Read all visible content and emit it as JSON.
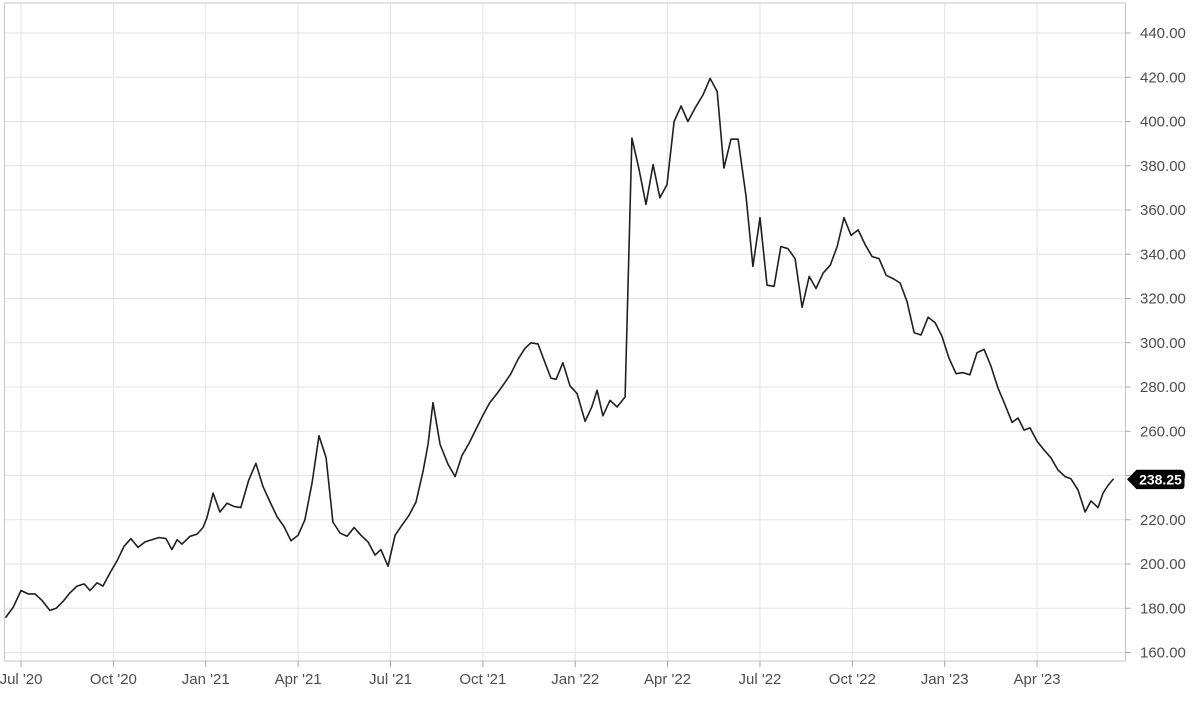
{
  "chart_data": {
    "type": "line",
    "title": "",
    "description": "Weekly share price line chart from mid-2020 to mid-2023, grid on, price axis on the right, last price tag 238.25",
    "x_unit": "months since July 2020",
    "x_range_visible": [
      -0.53,
      35.88
    ],
    "y_axis": {
      "side": "right",
      "min": 160,
      "max": 440,
      "step": 20,
      "tick_values": [
        440,
        420,
        400,
        380,
        360,
        340,
        320,
        300,
        280,
        260,
        240,
        220,
        200,
        180,
        160
      ],
      "tick_labels": [
        "440.00",
        "420.00",
        "400.00",
        "380.00",
        "360.00",
        "340.00",
        "320.00",
        "300.00",
        "280.00",
        "260.00",
        "240.00",
        "220.00",
        "200.00",
        "180.00",
        "160.00"
      ],
      "tick_label_hidden_behind_price_tag": "240.00"
    },
    "x_ticks": [
      {
        "t": 0,
        "label": "Jul '20"
      },
      {
        "t": 3,
        "label": "Oct '20"
      },
      {
        "t": 6,
        "label": "Jan '21"
      },
      {
        "t": 9,
        "label": "Apr '21"
      },
      {
        "t": 12,
        "label": "Jul '21"
      },
      {
        "t": 15,
        "label": "Oct '21"
      },
      {
        "t": 18,
        "label": "Jan '22"
      },
      {
        "t": 21,
        "label": "Apr '22"
      },
      {
        "t": 24,
        "label": "Jul '22"
      },
      {
        "t": 27,
        "label": "Oct '22"
      },
      {
        "t": 30,
        "label": "Jan '23"
      },
      {
        "t": 33,
        "label": "Apr '23"
      }
    ],
    "grid": true,
    "legend": "none",
    "last_price": {
      "label": "238.25",
      "value": 238.25
    },
    "series": [
      {
        "name": "price",
        "points": [
          [
            -0.49,
            176
          ],
          [
            -0.25,
            180.5
          ],
          [
            0,
            188
          ],
          [
            0.23,
            186.5
          ],
          [
            0.45,
            186.5
          ],
          [
            0.68,
            183.6
          ],
          [
            0.94,
            179
          ],
          [
            1.14,
            180
          ],
          [
            1.36,
            183
          ],
          [
            1.59,
            187
          ],
          [
            1.82,
            190
          ],
          [
            2.05,
            191
          ],
          [
            2.24,
            188
          ],
          [
            2.47,
            191.5
          ],
          [
            2.66,
            190
          ],
          [
            2.89,
            196
          ],
          [
            3.12,
            201.5
          ],
          [
            3.35,
            208
          ],
          [
            3.57,
            211.5
          ],
          [
            3.8,
            207.5
          ],
          [
            4.03,
            210
          ],
          [
            4.25,
            211
          ],
          [
            4.48,
            212
          ],
          [
            4.71,
            211.5
          ],
          [
            4.9,
            206.5
          ],
          [
            5.07,
            211
          ],
          [
            5.23,
            209
          ],
          [
            5.49,
            212.5
          ],
          [
            5.72,
            213.5
          ],
          [
            5.91,
            216.5
          ],
          [
            6.04,
            221
          ],
          [
            6.24,
            232
          ],
          [
            6.46,
            223.5
          ],
          [
            6.69,
            227.5
          ],
          [
            6.92,
            226
          ],
          [
            7.14,
            225.5
          ],
          [
            7.4,
            238
          ],
          [
            7.63,
            245.5
          ],
          [
            7.86,
            235
          ],
          [
            8.09,
            228
          ],
          [
            8.31,
            221.5
          ],
          [
            8.54,
            217
          ],
          [
            8.77,
            210.5
          ],
          [
            9,
            213
          ],
          [
            9.22,
            220
          ],
          [
            9.45,
            236.5
          ],
          [
            9.68,
            258
          ],
          [
            9.91,
            248
          ],
          [
            10.13,
            219
          ],
          [
            10.36,
            214
          ],
          [
            10.59,
            212.5
          ],
          [
            10.82,
            216.5
          ],
          [
            11.04,
            213
          ],
          [
            11.27,
            210
          ],
          [
            11.5,
            204
          ],
          [
            11.69,
            206.5
          ],
          [
            11.92,
            199
          ],
          [
            12.15,
            213
          ],
          [
            12.37,
            217.5
          ],
          [
            12.6,
            222
          ],
          [
            12.83,
            228
          ],
          [
            13.06,
            242
          ],
          [
            13.22,
            254
          ],
          [
            13.38,
            273
          ],
          [
            13.61,
            254
          ],
          [
            13.87,
            245
          ],
          [
            14.1,
            239.5
          ],
          [
            14.32,
            249
          ],
          [
            14.55,
            254.5
          ],
          [
            14.78,
            261
          ],
          [
            15.01,
            267.5
          ],
          [
            15.23,
            273
          ],
          [
            15.46,
            277
          ],
          [
            15.69,
            281.5
          ],
          [
            15.91,
            286
          ],
          [
            16.14,
            292.5
          ],
          [
            16.37,
            297.5
          ],
          [
            16.56,
            300
          ],
          [
            16.79,
            299.5
          ],
          [
            17.02,
            291
          ],
          [
            17.21,
            284
          ],
          [
            17.38,
            283.5
          ],
          [
            17.6,
            291
          ],
          [
            17.83,
            280.5
          ],
          [
            18.06,
            277
          ],
          [
            18.32,
            264.5
          ],
          [
            18.54,
            271
          ],
          [
            18.71,
            278.5
          ],
          [
            18.9,
            267
          ],
          [
            19.13,
            274
          ],
          [
            19.36,
            271
          ],
          [
            19.62,
            275.5
          ],
          [
            19.84,
            392.5
          ],
          [
            20.07,
            378.5
          ],
          [
            20.3,
            362.5
          ],
          [
            20.53,
            380.5
          ],
          [
            20.75,
            365.5
          ],
          [
            20.98,
            371.5
          ],
          [
            21.21,
            400
          ],
          [
            21.44,
            407
          ],
          [
            21.66,
            400
          ],
          [
            21.89,
            406
          ],
          [
            22.15,
            412
          ],
          [
            22.38,
            419.5
          ],
          [
            22.61,
            413.5
          ],
          [
            22.83,
            379
          ],
          [
            23.06,
            392
          ],
          [
            23.29,
            392
          ],
          [
            23.55,
            366
          ],
          [
            23.77,
            334.5
          ],
          [
            24,
            356.5
          ],
          [
            24.23,
            326
          ],
          [
            24.46,
            325.5
          ],
          [
            24.68,
            343.5
          ],
          [
            24.91,
            342.5
          ],
          [
            25.14,
            338
          ],
          [
            25.37,
            316
          ],
          [
            25.6,
            330
          ],
          [
            25.82,
            324.5
          ],
          [
            26.05,
            331.5
          ],
          [
            26.28,
            335
          ],
          [
            26.51,
            343.5
          ],
          [
            26.73,
            356.5
          ],
          [
            26.96,
            348.5
          ],
          [
            27.19,
            351
          ],
          [
            27.41,
            344.5
          ],
          [
            27.64,
            339
          ],
          [
            27.87,
            338
          ],
          [
            28.1,
            330.5
          ],
          [
            28.32,
            329
          ],
          [
            28.55,
            327
          ],
          [
            28.78,
            318.5
          ],
          [
            29.01,
            304.5
          ],
          [
            29.23,
            303.5
          ],
          [
            29.46,
            311.5
          ],
          [
            29.69,
            309
          ],
          [
            29.91,
            303
          ],
          [
            30.14,
            293
          ],
          [
            30.37,
            286
          ],
          [
            30.59,
            286.5
          ],
          [
            30.82,
            285.5
          ],
          [
            31.05,
            295.5
          ],
          [
            31.28,
            297
          ],
          [
            31.5,
            289.5
          ],
          [
            31.73,
            279.5
          ],
          [
            31.96,
            272
          ],
          [
            32.19,
            264
          ],
          [
            32.38,
            266
          ],
          [
            32.58,
            260.5
          ],
          [
            32.77,
            261.5
          ],
          [
            33,
            255.5
          ],
          [
            33.23,
            251.5
          ],
          [
            33.45,
            248
          ],
          [
            33.68,
            242.5
          ],
          [
            33.91,
            239.5
          ],
          [
            34.1,
            238.5
          ],
          [
            34.33,
            233.5
          ],
          [
            34.56,
            223.5
          ],
          [
            34.75,
            228.5
          ],
          [
            34.98,
            225.5
          ],
          [
            35.14,
            232
          ],
          [
            35.3,
            235.5
          ],
          [
            35.47,
            238.25
          ]
        ]
      }
    ],
    "colors": {
      "background": "#ffffff",
      "line": "#1f1f1f",
      "grid": "#e3e3e3",
      "axis_border": "#c6c6c6",
      "tick": "#a6a6a6",
      "label_text": "#4d4d4d",
      "last_price_bg": "#000000",
      "last_price_text": "#ffffff"
    }
  }
}
